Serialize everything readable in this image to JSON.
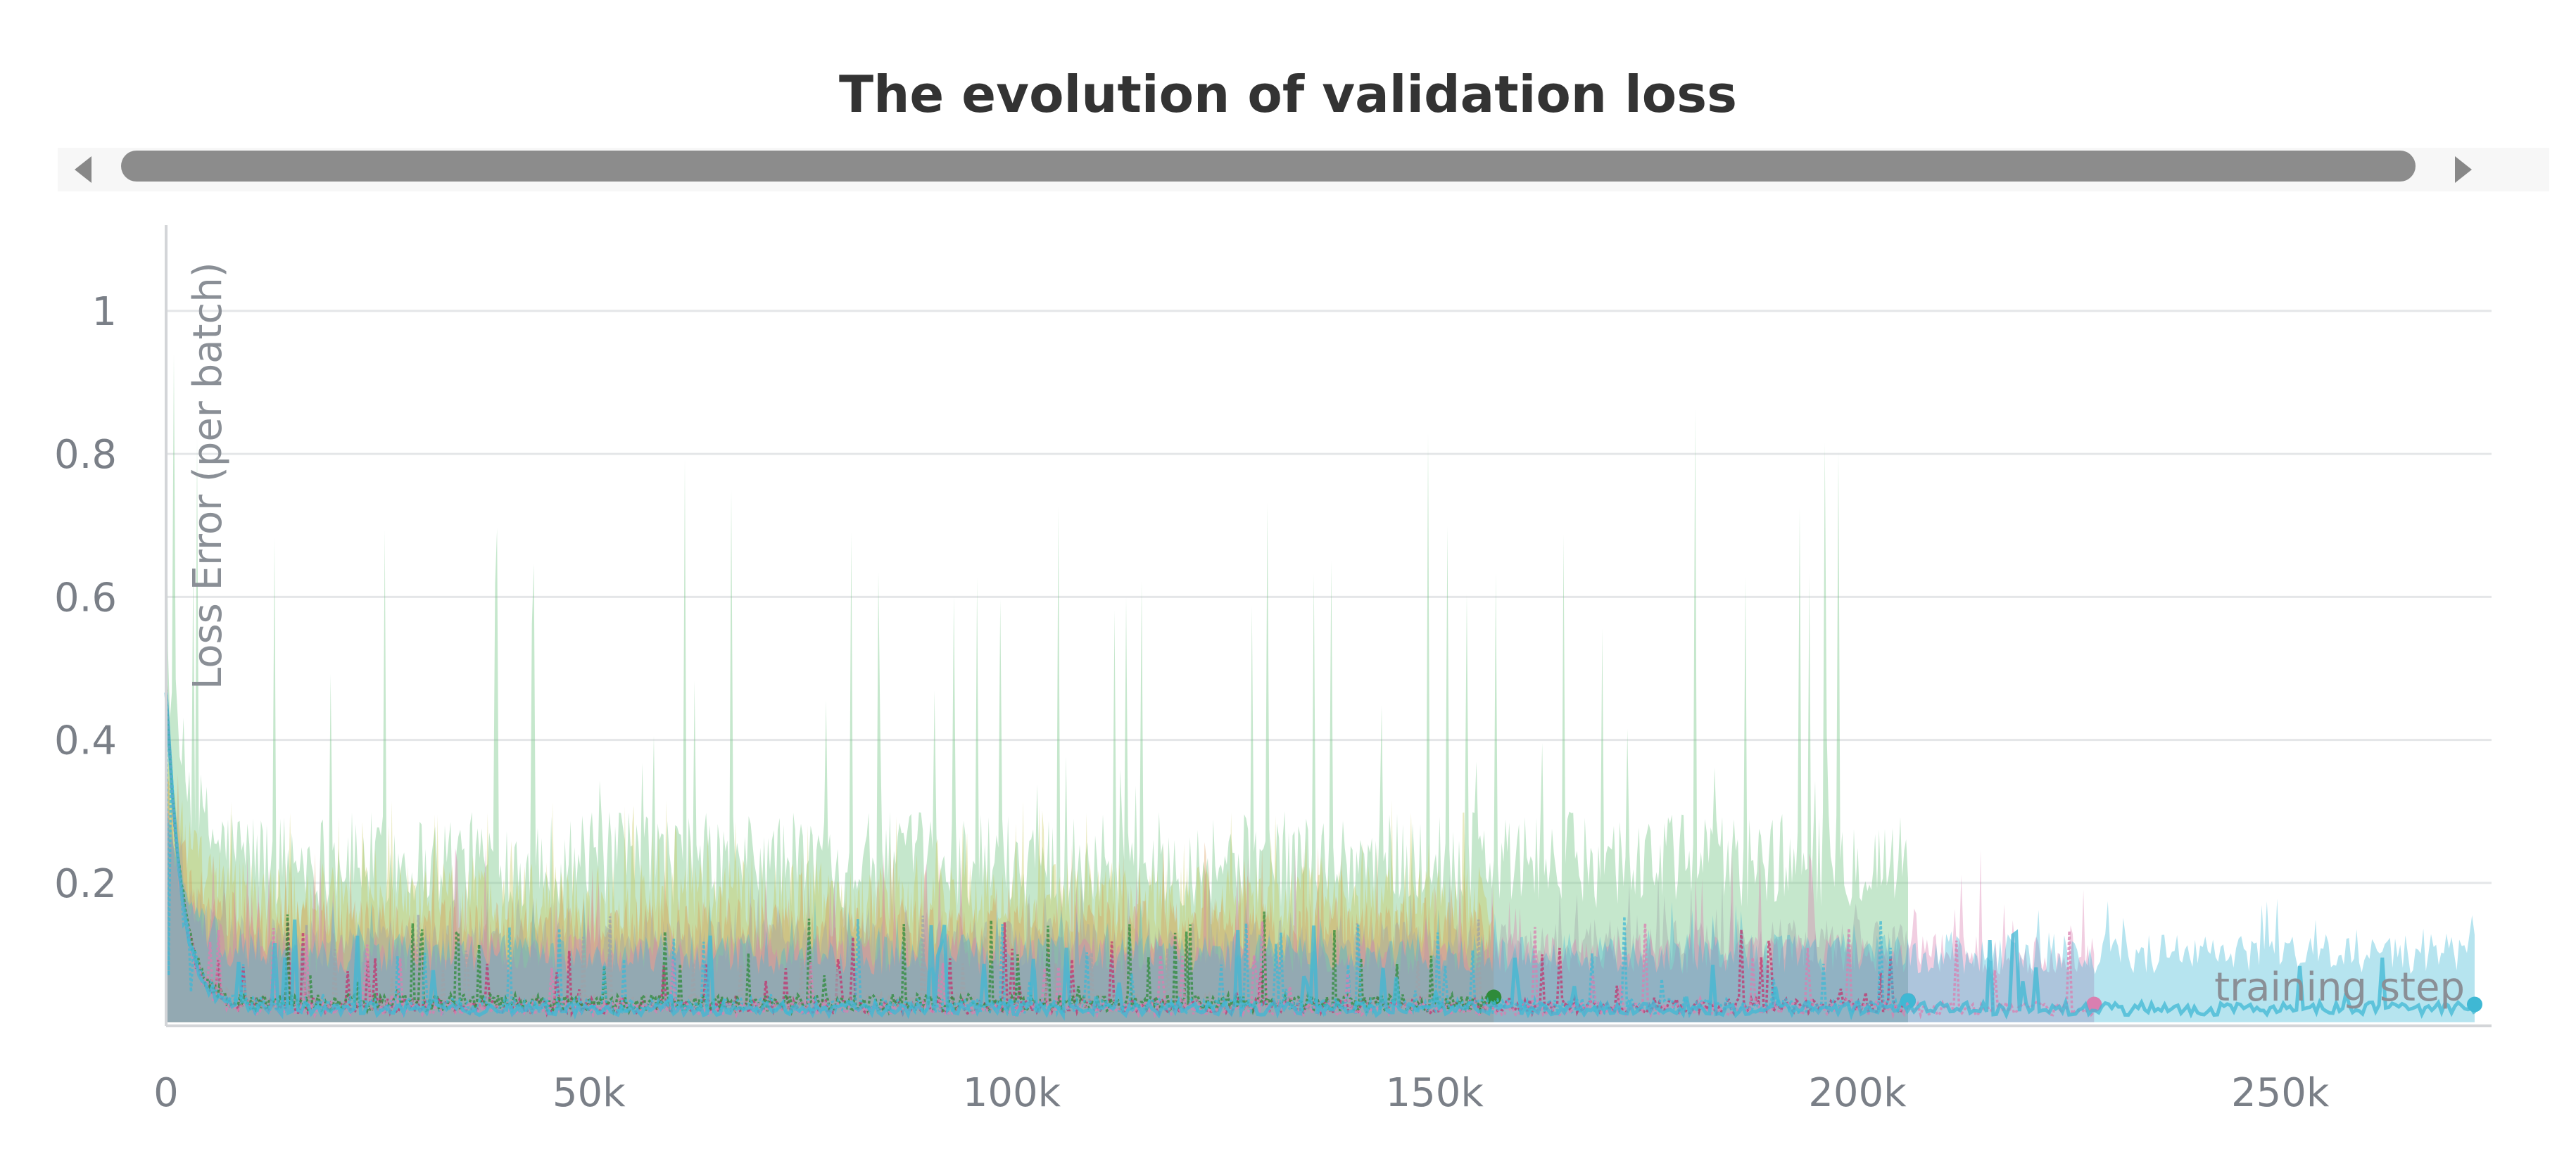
{
  "chart_data": {
    "type": "line",
    "title": "The evolution of validation loss",
    "xlabel": "training step",
    "ylabel": "Loss Error (per batch)",
    "xlim": [
      0,
      275000
    ],
    "ylim": [
      0,
      1.12
    ],
    "x_ticks": [
      0,
      50000,
      100000,
      150000,
      200000,
      250000
    ],
    "x_tick_labels": [
      "0",
      "50k",
      "100k",
      "150k",
      "200k",
      "250k"
    ],
    "y_ticks": [
      0.2,
      0.4,
      0.6,
      0.8,
      1
    ],
    "y_tick_labels": [
      "0.2",
      "0.4",
      "0.6",
      "0.8",
      "1"
    ],
    "grid": true,
    "legend": "none",
    "scrollbar": {
      "prev_icon": "triangle-left-icon",
      "next_icon": "triangle-right-icon"
    },
    "colors": {
      "green": "#7fc98f",
      "yellow": "#c9c85a",
      "orange": "#d99a5a",
      "gray": "#9ea3a8",
      "pink": "#d97fb0",
      "magenta": "#c2336e",
      "cyan": "#3fb8d4",
      "darkgreen": "#2e8b3a"
    },
    "series": [
      {
        "color": "green",
        "x_end": 206000,
        "band_top": 0.3,
        "spike_max": 0.88,
        "line_mean": 0.035
      },
      {
        "color": "yellow",
        "x_end": 157000,
        "band_top": 0.23,
        "spike_max": 0.32,
        "line_mean": 0.04
      },
      {
        "color": "orange",
        "x_end": 157000,
        "band_top": 0.18,
        "spike_max": 0.26,
        "line_mean": 0.04
      },
      {
        "color": "gray",
        "x_end": 206000,
        "band_top": 0.15,
        "spike_max": 0.22,
        "line_mean": 0.035
      },
      {
        "color": "pink",
        "x_end": 228000,
        "band_top": 0.13,
        "spike_max": 0.25,
        "line_mean": 0.03
      },
      {
        "color": "cyan",
        "x_end": 273000,
        "band_top": 0.13,
        "spike_max": 0.18,
        "line_mean": 0.03
      }
    ]
  }
}
